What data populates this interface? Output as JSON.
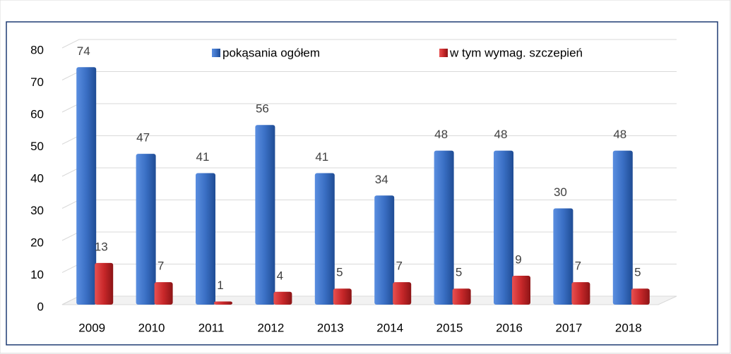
{
  "chart_data": {
    "type": "bar",
    "categories": [
      "2009",
      "2010",
      "2011",
      "2012",
      "2013",
      "2014",
      "2015",
      "2016",
      "2017",
      "2018"
    ],
    "series": [
      {
        "name": "pokąsania ogółem",
        "color": "#3a6fc4",
        "values": [
          74,
          47,
          41,
          56,
          41,
          34,
          48,
          48,
          30,
          48
        ]
      },
      {
        "name": "w tym wymag. szczepień",
        "color": "#c8282a",
        "values": [
          13,
          7,
          1,
          4,
          5,
          7,
          5,
          9,
          7,
          5
        ]
      }
    ],
    "ylim": [
      0,
      80
    ],
    "yticks": [
      0,
      10,
      20,
      30,
      40,
      50,
      60,
      70,
      80
    ],
    "grid": true
  }
}
